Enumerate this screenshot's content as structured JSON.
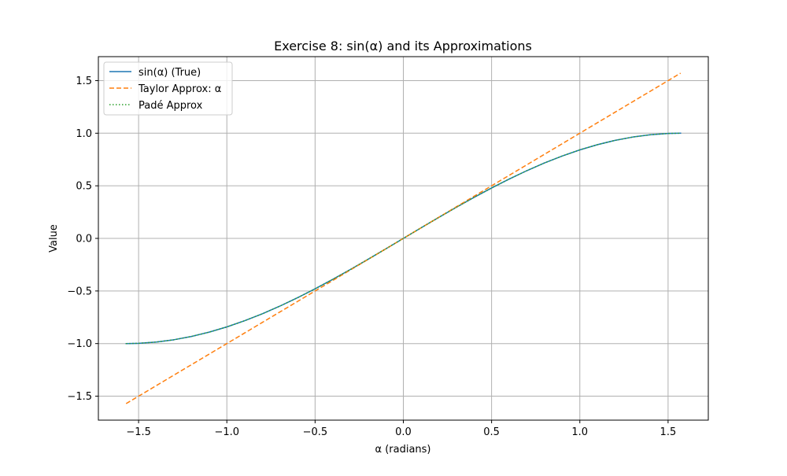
{
  "chart_data": {
    "type": "line",
    "title": "Exercise 8: sin(α) and its Approximations",
    "xlabel": "α (radians)",
    "ylabel": "Value",
    "xlim": [
      -1.7279,
      1.7279
    ],
    "ylim": [
      -1.7279,
      1.7279
    ],
    "grid": true,
    "legend_position": "upper left",
    "x_ticks": [
      -1.5,
      -1.0,
      -0.5,
      0.0,
      0.5,
      1.0,
      1.5
    ],
    "x_tick_labels": [
      "−1.5",
      "−1.0",
      "−0.5",
      "0.0",
      "0.5",
      "1.0",
      "1.5"
    ],
    "y_ticks": [
      -1.5,
      -1.0,
      -0.5,
      0.0,
      0.5,
      1.0,
      1.5
    ],
    "y_tick_labels": [
      "−1.5",
      "−1.0",
      "−0.5",
      "0.0",
      "0.5",
      "1.0",
      "1.5"
    ],
    "x": [
      -1.5708,
      -1.5,
      -1.4,
      -1.3,
      -1.2,
      -1.1,
      -1.0,
      -0.9,
      -0.8,
      -0.7,
      -0.6,
      -0.5,
      -0.4,
      -0.3,
      -0.2,
      -0.1,
      0.0,
      0.1,
      0.2,
      0.3,
      0.4,
      0.5,
      0.6,
      0.7,
      0.8,
      0.9,
      1.0,
      1.1,
      1.2,
      1.3,
      1.4,
      1.5,
      1.5708
    ],
    "series": [
      {
        "name": "sin(α) (True)",
        "style": "solid",
        "color": "#1f77b4",
        "values": [
          -1.0,
          -0.9975,
          -0.9854,
          -0.9636,
          -0.932,
          -0.8912,
          -0.8415,
          -0.7833,
          -0.7174,
          -0.6442,
          -0.5646,
          -0.4794,
          -0.3894,
          -0.2955,
          -0.1987,
          -0.0998,
          0.0,
          0.0998,
          0.1987,
          0.2955,
          0.3894,
          0.4794,
          0.5646,
          0.6442,
          0.7174,
          0.7833,
          0.8415,
          0.8912,
          0.932,
          0.9636,
          0.9854,
          0.9975,
          1.0
        ]
      },
      {
        "name": "Taylor Approx: α",
        "style": "dashed",
        "color": "#ff7f0e",
        "values": [
          -1.5708,
          -1.5,
          -1.4,
          -1.3,
          -1.2,
          -1.1,
          -1.0,
          -0.9,
          -0.8,
          -0.7,
          -0.6,
          -0.5,
          -0.4,
          -0.3,
          -0.2,
          -0.1,
          0.0,
          0.1,
          0.2,
          0.3,
          0.4,
          0.5,
          0.6,
          0.7,
          0.8,
          0.9,
          1.0,
          1.1,
          1.2,
          1.3,
          1.4,
          1.5,
          1.5708
        ]
      },
      {
        "name": "Padé Approx",
        "style": "dotted",
        "color": "#2ca02c",
        "values": [
          -1.0,
          -0.9975,
          -0.9854,
          -0.9636,
          -0.932,
          -0.8912,
          -0.8415,
          -0.7833,
          -0.7174,
          -0.6442,
          -0.5646,
          -0.4794,
          -0.3894,
          -0.2955,
          -0.1987,
          -0.0998,
          0.0,
          0.0998,
          0.1987,
          0.2955,
          0.3894,
          0.4794,
          0.5646,
          0.6442,
          0.7174,
          0.7833,
          0.8415,
          0.8912,
          0.932,
          0.9636,
          0.9854,
          0.9975,
          1.0
        ]
      }
    ]
  }
}
